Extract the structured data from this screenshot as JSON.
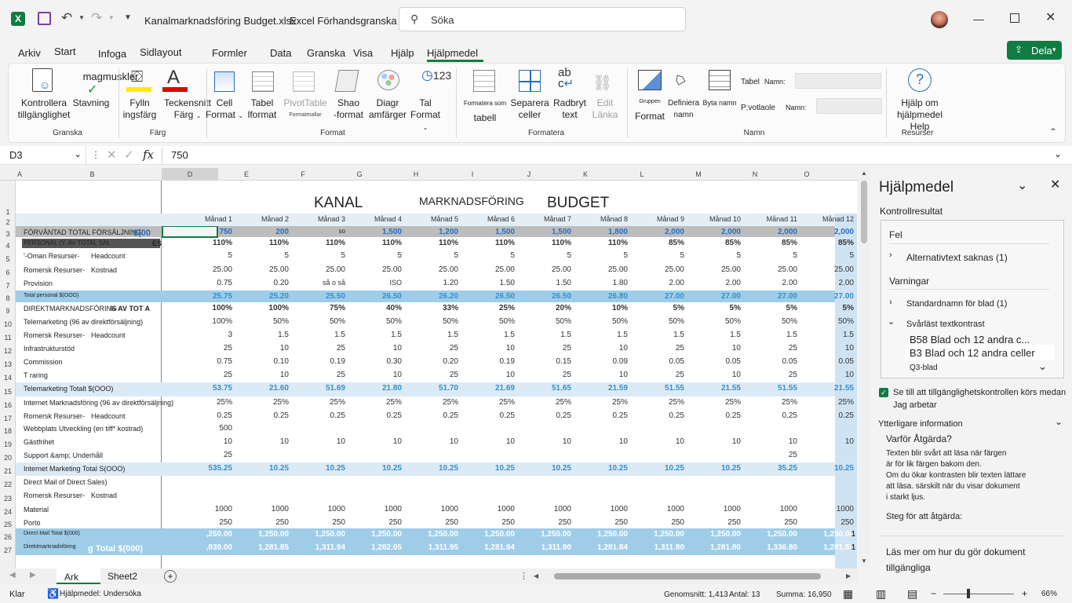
{
  "titlebar": {
    "filename": "Kanalmarknadsföring Budget.xlsx",
    "mode": "Excel Förhandsgranska",
    "search_placeholder": "Söka"
  },
  "menu_tabs": [
    "Arkiv",
    "Start",
    "Infoga",
    "Sidlayout",
    "Formler",
    "Data",
    "Granska",
    "Visa",
    "Hjälp",
    "Hjälpmedel"
  ],
  "share_label": "Dela",
  "ribbon": {
    "check_accessibility": [
      "Kontrollera",
      "tillgänglighet"
    ],
    "spelling_top": "magmuskler",
    "spelling": "Stavning",
    "fill": [
      "Fylln",
      "ingsfärg"
    ],
    "font_color": [
      "Teckensnitt",
      "Färg"
    ],
    "cell": [
      "Cell",
      "Format"
    ],
    "table": [
      "Tabel",
      "lformat"
    ],
    "pivot": [
      "PivotTable",
      "Formatmallar"
    ],
    "shape": [
      "Shao",
      "-format"
    ],
    "diagram": [
      "Diagr",
      "amfärger"
    ],
    "number": [
      "Tal",
      "Format"
    ],
    "format_as_table": [
      "Formatera som",
      "tabell"
    ],
    "split_cells": [
      "Separera",
      "celler"
    ],
    "wrap_text": [
      "Radbryt",
      "text"
    ],
    "edit_links": [
      "Edit",
      "Länka"
    ],
    "group_format": [
      "Gruppen",
      "Format"
    ],
    "define_name": [
      "Definiera",
      "namn"
    ],
    "byte_namn": "Byta namn",
    "tabel_label": "Tabel",
    "namn_label": "Namn:",
    "pivot_label": "P:votlaole",
    "namn_label2": "Namn:",
    "help": [
      "Hjälp om hjälpmedel",
      "Help"
    ],
    "groups": [
      "Granska",
      "Färg",
      "Format",
      "Formatera",
      "Namn",
      "Resurser"
    ]
  },
  "formula_bar": {
    "cell_ref": "D3",
    "value": "750"
  },
  "columns": [
    "A",
    "B",
    "D",
    "E",
    "F",
    "G",
    "H",
    "I",
    "J",
    "K",
    "L",
    "M",
    "N",
    "O"
  ],
  "rows": [
    "1",
    "2",
    "3",
    "4",
    "5",
    "6",
    "7",
    "8",
    "9",
    "10",
    "11",
    "12",
    "13",
    "14",
    "15",
    "16",
    "17",
    "18",
    "19",
    "20",
    "21",
    "22",
    "23",
    "24",
    "25",
    "26",
    "27"
  ],
  "sheet": {
    "title": [
      "KANAL",
      "MARKNADSFÖRING",
      "BUDGET"
    ],
    "months": [
      "Månad 1",
      "Månad 2",
      "Månad 3",
      "Månad 4",
      "Månad 5",
      "Månad 6",
      "Månad 7",
      "Månad 8",
      "Månad 9",
      "Månad 10",
      "Månad 11",
      "Månad 12"
    ],
    "labels": [
      {
        "r": 3,
        "t": "FÖRVÄNTAD TOTAL FÖRSÄLJNING",
        "t2": "$(00"
      },
      {
        "r": 4,
        "t": "PERSONAL (Y. AV TOTAL SAL",
        "t2": "ES"
      },
      {
        "r": 5,
        "t": "'-Oman Resurser-",
        "t2": "Headcount"
      },
      {
        "r": 6,
        "t": "Romersk  Resurser-",
        "t2": "Kostnad"
      },
      {
        "r": 7,
        "t": "Provision",
        "t2": ""
      },
      {
        "r": 8,
        "t": "Total personal $(OOO)",
        "t2": ""
      },
      {
        "r": 9,
        "t": "DIREKTMARKNADSFÖRING",
        "t2": "% AV TOT   A"
      },
      {
        "r": 10,
        "t": "Telemarketing (96 av direktförsäljning)",
        "t2": ""
      },
      {
        "r": 11,
        "t": "Romersk  Resurser-",
        "t2": "Headcount"
      },
      {
        "r": 12,
        "t": "Infrastrukturstöd",
        "t2": ""
      },
      {
        "r": 13,
        "t": "Commission",
        "t2": ""
      },
      {
        "r": 14,
        "t": "T raring",
        "t2": ""
      },
      {
        "r": 15,
        "t": "Telemarketing Totalt $(OOO)",
        "t2": ""
      },
      {
        "r": 16,
        "t": "Internet   Marknadsföring (96 av direktförsäljning)",
        "t2": ""
      },
      {
        "r": 17,
        "t": "Romersk  Resurser-",
        "t2": "Headcount"
      },
      {
        "r": 18,
        "t": "Webbplats  Utveckling (en tiff* kostrad)",
        "t2": ""
      },
      {
        "r": 19,
        "t": "Gästfrihet",
        "t2": ""
      },
      {
        "r": 20,
        "t": "Support &amp;   Underhåll",
        "t2": ""
      },
      {
        "r": 21,
        "t": "Internet Marketing Total S(OOO)",
        "t2": ""
      },
      {
        "r": 22,
        "t": "Direct   Mail of Direct Sales)",
        "t2": ""
      },
      {
        "r": 23,
        "t": "Romersk  Resurser-",
        "t2": "Kostnad"
      },
      {
        "r": 24,
        "t": "Material",
        "t2": ""
      },
      {
        "r": 25,
        "t": "Porto",
        "t2": ""
      },
      {
        "r": 26,
        "t": "Direct Mail Total $(000)",
        "t2": ""
      },
      {
        "r": 27,
        "t": "Direktmarknadsföring",
        "t2": "g Total $(000)"
      }
    ],
    "data": {
      "3": [
        "750",
        "200",
        "so",
        "1,500",
        "1,200",
        "1,500",
        "1,500",
        "1,800",
        "2,000",
        "2,000",
        "2,000",
        "2,000"
      ],
      "4": [
        "110%",
        "110%",
        "110%",
        "110%",
        "110%",
        "110%",
        "110%",
        "110%",
        "85%",
        "85%",
        "85%",
        "85%"
      ],
      "5": [
        "5",
        "5",
        "5",
        "5",
        "5",
        "5",
        "5",
        "5",
        "5",
        "5",
        "5",
        "5"
      ],
      "6": [
        "25.00",
        "25.00",
        "25.00",
        "25.00",
        "25.00",
        "25.00",
        "25.00",
        "25.00",
        "25.00",
        "25.00",
        "25.00",
        "25.00"
      ],
      "7": [
        "0.75",
        "0.20",
        "så o så",
        "ISO",
        "1.20",
        "1.50",
        "1.50",
        "1.80",
        "2.00",
        "2.00",
        "2.00",
        "2.00"
      ],
      "8": [
        "25.75",
        "25.20",
        "25.50",
        "26.50",
        "26.20",
        "26.50",
        "26.50",
        "26.80",
        "27.00",
        "27.00",
        "27.00",
        "27.00"
      ],
      "9": [
        "100%",
        "100%",
        "75%",
        "40%",
        "33%",
        "25%",
        "20%",
        "10%",
        "5%",
        "5%",
        "5%",
        "5%"
      ],
      "10": [
        "100%",
        "50%",
        "50%",
        "50%",
        "50%",
        "50%",
        "50%",
        "50%",
        "50%",
        "50%",
        "50%",
        "50%"
      ],
      "11": [
        "3",
        "1.5",
        "1.5",
        "1.5",
        "1.5",
        "1.5",
        "1.5",
        "1.5",
        "1.5",
        "1.5",
        "1.5",
        "1.5"
      ],
      "12": [
        "25",
        "10",
        "25",
        "10",
        "25",
        "10",
        "25",
        "10",
        "25",
        "10",
        "25",
        "10"
      ],
      "13": [
        "0.75",
        "0.10",
        "0.19",
        "0.30",
        "0.20",
        "0.19",
        "0.15",
        "0.09",
        "0.05",
        "0.05",
        "0.05",
        "0.05"
      ],
      "14": [
        "25",
        "10",
        "25",
        "10",
        "25",
        "10",
        "25",
        "10",
        "25",
        "10",
        "25",
        "10"
      ],
      "15": [
        "53.75",
        "21.60",
        "51.69",
        "21.80",
        "51.70",
        "21.69",
        "51.65",
        "21.59",
        "51.55",
        "21.55",
        "51.55",
        "21.55"
      ],
      "16": [
        "25%",
        "25%",
        "25%",
        "25%",
        "25%",
        "25%",
        "25%",
        "25%",
        "25%",
        "25%",
        "25%",
        "25%"
      ],
      "17": [
        "0.25",
        "0.25",
        "0.25",
        "0.25",
        "0.25",
        "0.25",
        "0.25",
        "0.25",
        "0.25",
        "0.25",
        "0.25",
        "0.25"
      ],
      "18": [
        "500",
        "",
        "",
        "",
        "",
        "",
        "",
        "",
        "",
        "",
        "",
        ""
      ],
      "19": [
        "10",
        "10",
        "10",
        "10",
        "10",
        "10",
        "10",
        "10",
        "10",
        "10",
        "10",
        "10"
      ],
      "20": [
        "25",
        "",
        "",
        "",
        "",
        "",
        "",
        "",
        "",
        "",
        "25",
        ""
      ],
      "21": [
        "535.25",
        "10.25",
        "10.25",
        "10.25",
        "10.25",
        "10.25",
        "10.25",
        "10.25",
        "10.25",
        "10.25",
        "35.25",
        "10.25"
      ],
      "22": [
        "",
        "",
        "",
        "",
        "",
        "",
        "",
        "",
        "",
        "",
        "",
        ""
      ],
      "23": [
        "",
        "",
        "",
        "",
        "",
        "",
        "",
        "",
        "",
        "",
        "",
        ""
      ],
      "24": [
        "1000",
        "1000",
        "1000",
        "1000",
        "1000",
        "1000",
        "1000",
        "1000",
        "1000",
        "1000",
        "1000",
        "1000"
      ],
      "25": [
        "250",
        "250",
        "250",
        "250",
        "250",
        "250",
        "250",
        "250",
        "250",
        "250",
        "250",
        "250"
      ],
      "26": [
        ",250.00",
        "1,250.00",
        "1,250.00",
        "1,250.00",
        "1,250.00",
        "1,250.00",
        "1,250.00",
        "1,250.00",
        "1,250.00",
        "1,250.00",
        "1,250.00",
        "1,250.00"
      ],
      "27": [
        ",839.00",
        "1,281.85",
        "1,311.94",
        "1,282.05",
        "1,311.95",
        "1,281.94",
        "1,311.90",
        "1,281.84",
        "1,311.80",
        "1,281.80",
        "1,336.80",
        "1,281.80"
      ]
    },
    "extra_col_p": [
      "1",
      "1"
    ]
  },
  "sheet_tabs": [
    "Ark",
    "Sheet2"
  ],
  "pane": {
    "title": "Hjälpmedel",
    "results": "Kontrollresultat",
    "errors": "Fel",
    "alt_text": "Alternativtext saknas (1)",
    "warnings": "Varningar",
    "default_names": "Standardnamn för blad (1)",
    "hard_contrast": "Svårläst textkontrast",
    "item1": "B58 Blad och 12 andra c...",
    "item2": "B3 Blad och 12 andra celler",
    "item3": "Q3-blad",
    "keep_running": [
      "Se till att tillgänglighetskontrollen körs medan",
      "Jag arbetar"
    ],
    "more_info": "Ytterligare information",
    "why_fix": "Varför Åtgärda?",
    "why_text": [
      "Texten blir svårt att läsa när färgen",
      "är för lik färgen bakom den.",
      "Om du ökar kontrasten blir texten lättare",
      "att läsa. särskilt när du visar dokument",
      "i starkt ljus."
    ],
    "steps": "Steg för att åtgärda:",
    "learn_more": [
      "Läs mer om hur du gör dokument",
      "tillgängliga"
    ]
  },
  "status": {
    "ready": "Klar",
    "accessibility": "Hjälpmedel: Undersöka",
    "average": "Genomsnitt: 1,413",
    "count": "Antal: 13",
    "sum": "Summa: 16,950",
    "zoom": "66%"
  },
  "colors": {
    "accent": "#107c41",
    "band": "#9fcde8",
    "grey": "#bdbdbd"
  }
}
